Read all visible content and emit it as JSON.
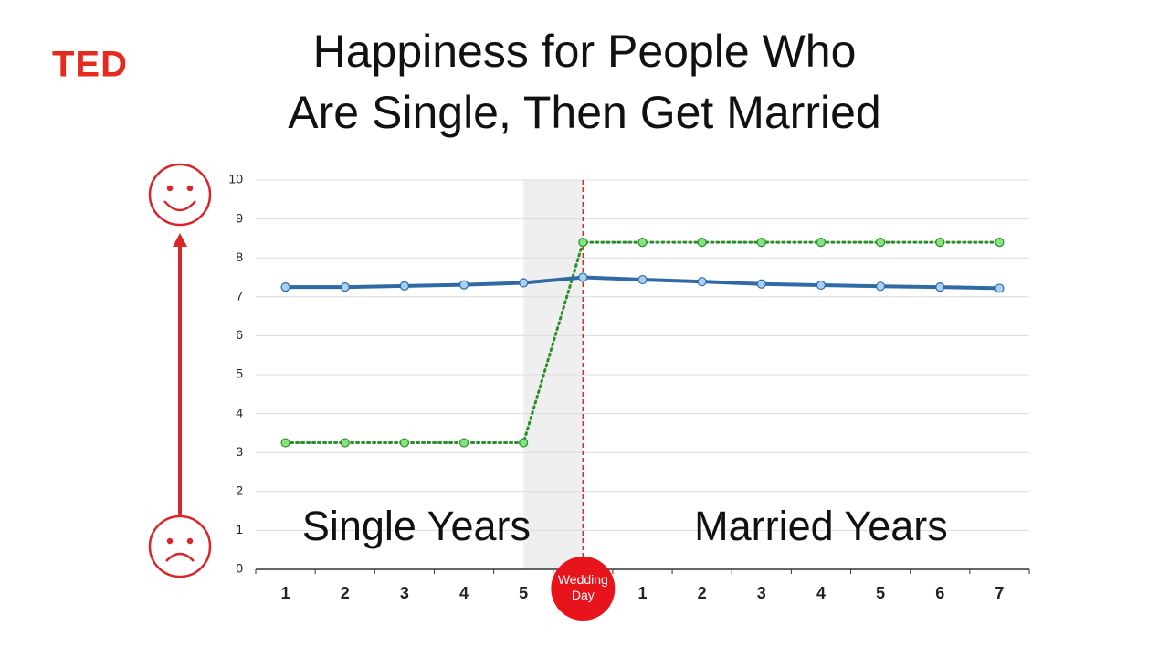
{
  "brand": "TED",
  "chart_data": {
    "type": "line",
    "title": [
      "Happiness for People Who",
      "Are Single, Then Get Married"
    ],
    "categories": [
      "1",
      "2",
      "3",
      "4",
      "5",
      "Wedding Day",
      "1",
      "2",
      "3",
      "4",
      "5",
      "6",
      "7"
    ],
    "series": [
      {
        "color": "#2f6aa6",
        "marker_color": "#a8d0f2",
        "dashed": false,
        "values": [
          7.25,
          7.25,
          7.28,
          7.31,
          7.36,
          7.5,
          7.44,
          7.39,
          7.33,
          7.3,
          7.27,
          7.25,
          7.22
        ]
      },
      {
        "color": "#2a8f2a",
        "marker_color": "#86e37e",
        "dashed": true,
        "values": [
          3.25,
          3.25,
          3.25,
          3.25,
          3.25,
          8.4,
          8.4,
          8.4,
          8.4,
          8.4,
          8.4,
          8.4,
          8.4
        ]
      }
    ],
    "ylim": [
      0,
      10
    ],
    "yticks": [
      0,
      1,
      2,
      3,
      4,
      5,
      6,
      7,
      8,
      9,
      10
    ],
    "grid": true,
    "annotations": [
      "Single Years",
      "Married Years"
    ]
  }
}
